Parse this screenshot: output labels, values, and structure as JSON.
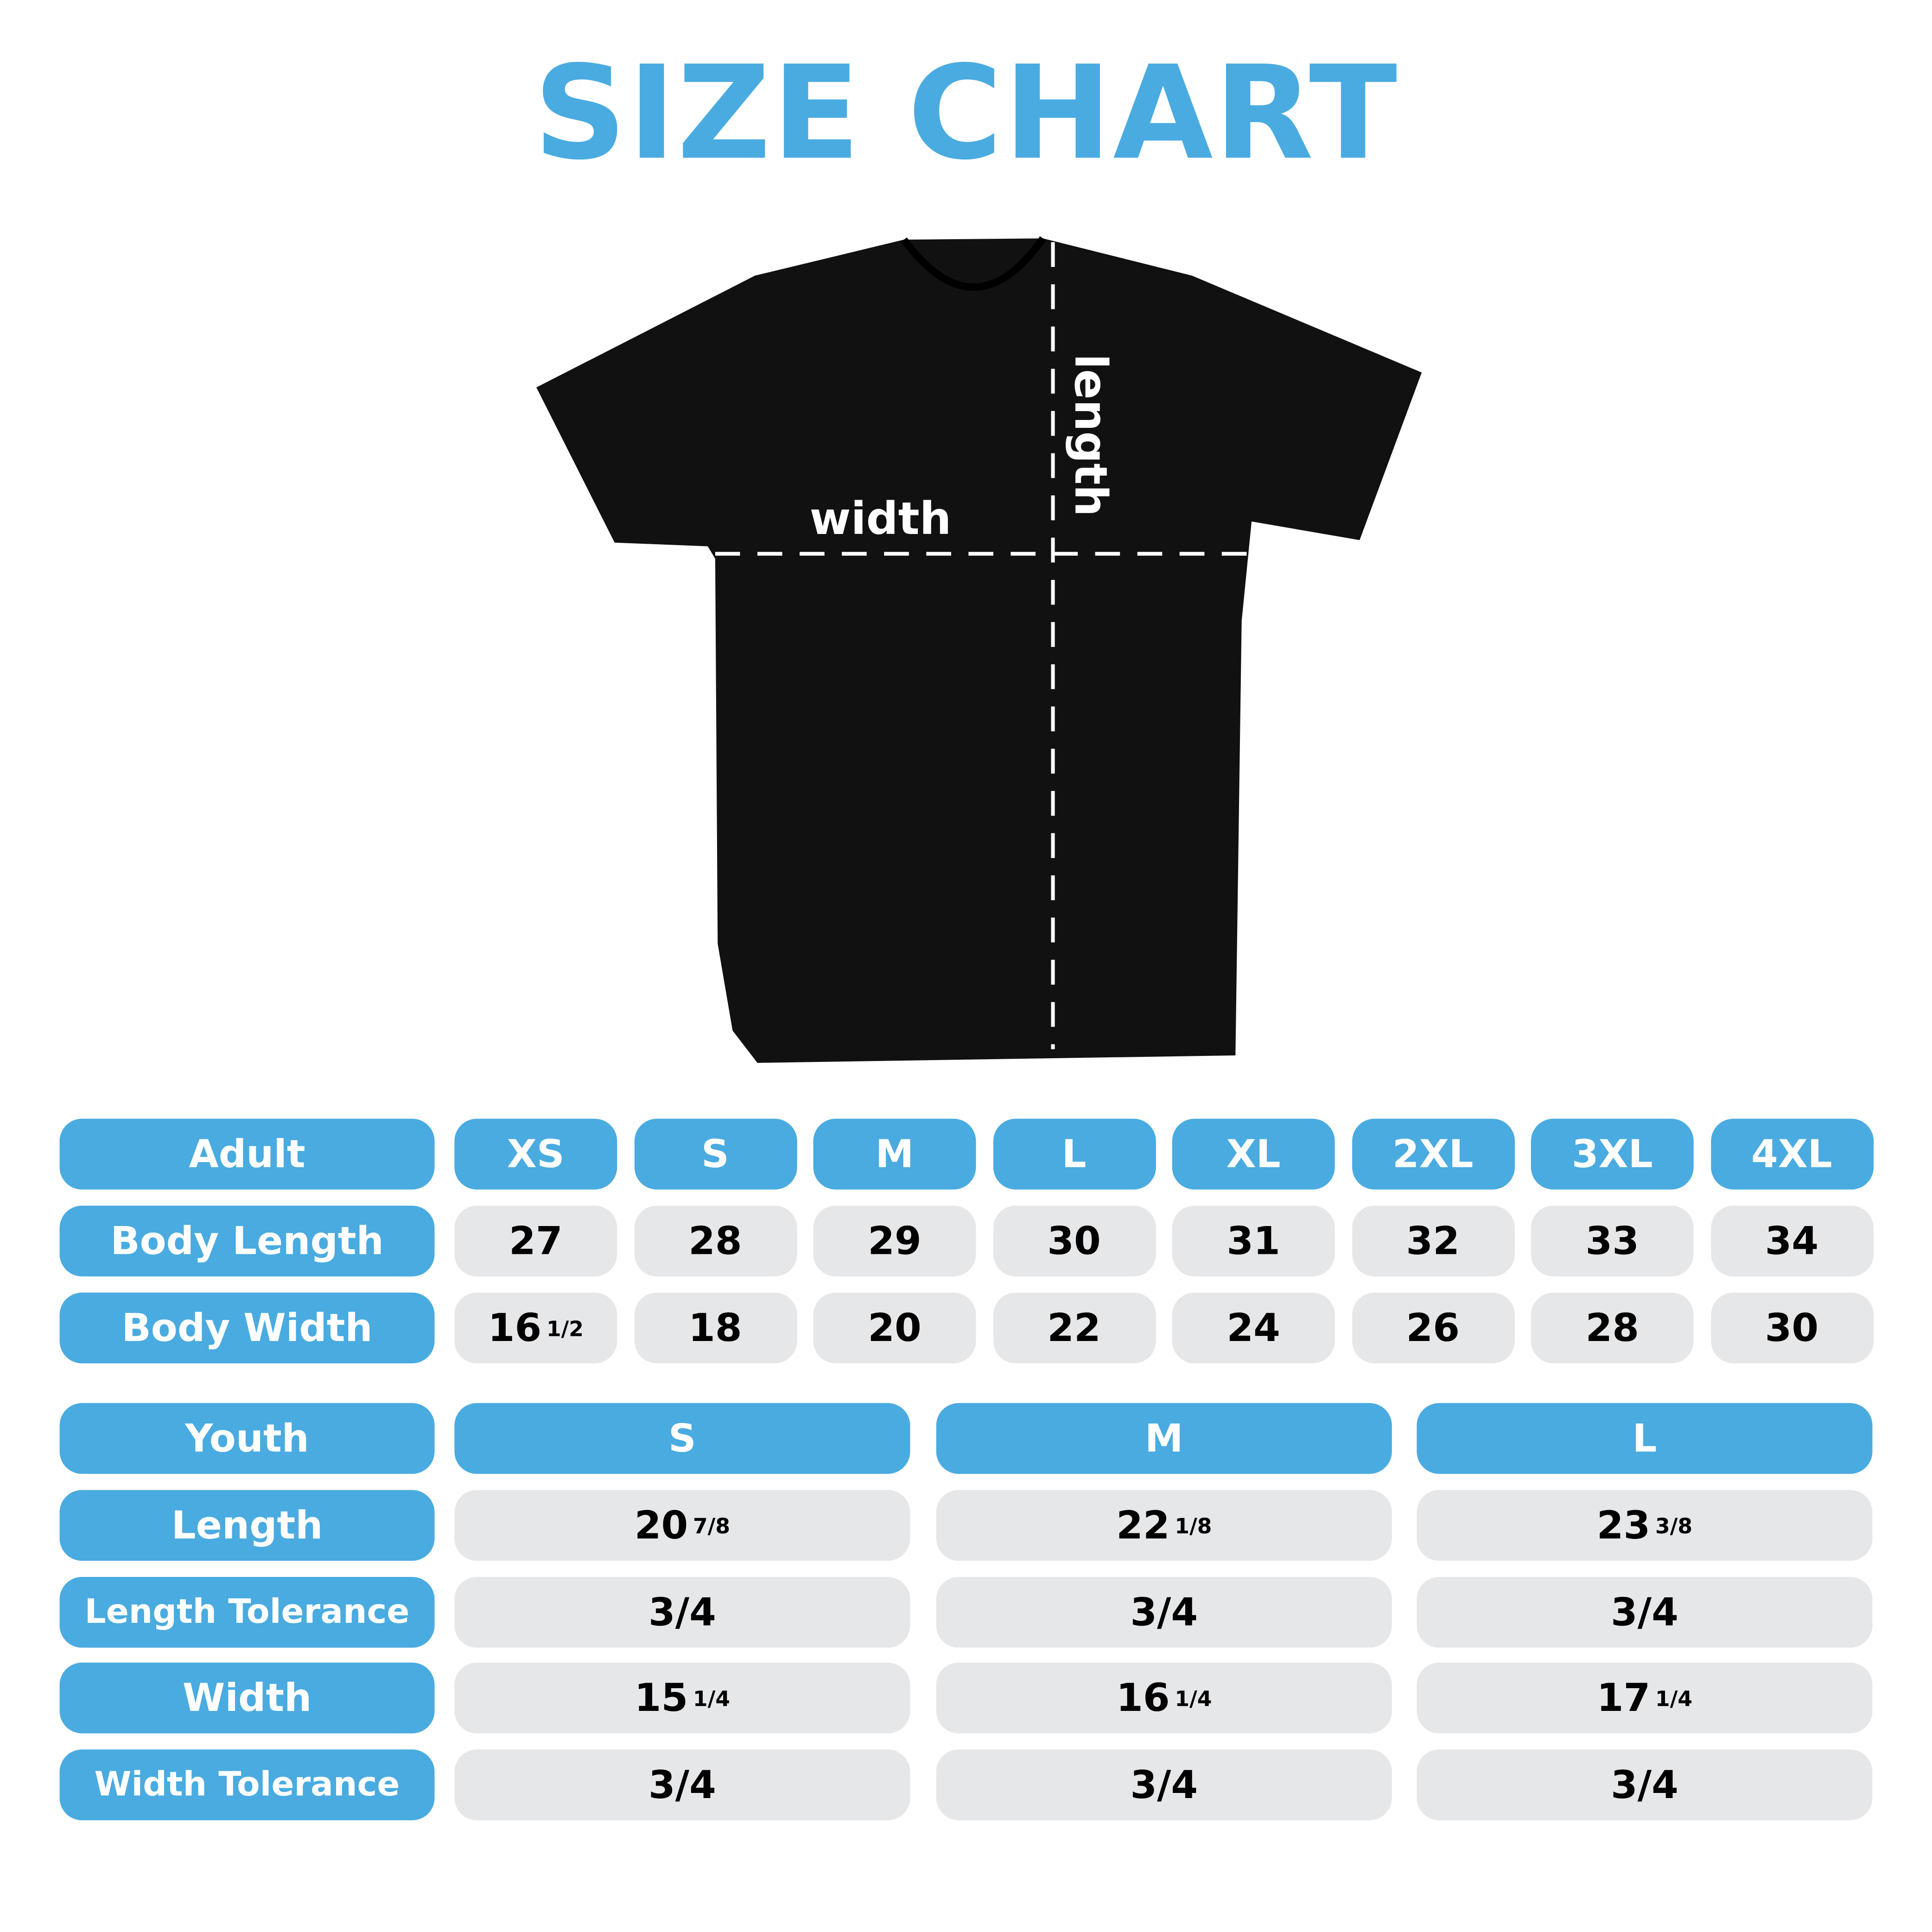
{
  "title": "SIZE CHART",
  "colors": {
    "accent": "#49ABE0",
    "cell": "#E6E7E9",
    "shirt": "#111111"
  },
  "shirt": {
    "width_label": "width",
    "length_label": "length"
  },
  "adult": {
    "header": "Adult",
    "sizes": [
      "XS",
      "S",
      "M",
      "L",
      "XL",
      "2XL",
      "3XL",
      "4XL"
    ],
    "rows": [
      {
        "label": "Body Length",
        "values": [
          {
            "w": "27",
            "f": ""
          },
          {
            "w": "28",
            "f": ""
          },
          {
            "w": "29",
            "f": ""
          },
          {
            "w": "30",
            "f": ""
          },
          {
            "w": "31",
            "f": ""
          },
          {
            "w": "32",
            "f": ""
          },
          {
            "w": "33",
            "f": ""
          },
          {
            "w": "34",
            "f": ""
          }
        ]
      },
      {
        "label": "Body Width",
        "values": [
          {
            "w": "16",
            "f": "1/2"
          },
          {
            "w": "18",
            "f": ""
          },
          {
            "w": "20",
            "f": ""
          },
          {
            "w": "22",
            "f": ""
          },
          {
            "w": "24",
            "f": ""
          },
          {
            "w": "26",
            "f": ""
          },
          {
            "w": "28",
            "f": ""
          },
          {
            "w": "30",
            "f": ""
          }
        ]
      }
    ]
  },
  "youth": {
    "header": "Youth",
    "sizes": [
      "S",
      "M",
      "L"
    ],
    "rows": [
      {
        "label": "Length",
        "values": [
          {
            "w": "20",
            "f": "7/8"
          },
          {
            "w": "22",
            "f": "1/8"
          },
          {
            "w": "23",
            "f": "3/8"
          }
        ]
      },
      {
        "label": "Length Tolerance",
        "values": [
          {
            "w": "3/4",
            "f": ""
          },
          {
            "w": "3/4",
            "f": ""
          },
          {
            "w": "3/4",
            "f": ""
          }
        ]
      },
      {
        "label": "Width",
        "values": [
          {
            "w": "15",
            "f": "1/4"
          },
          {
            "w": "16",
            "f": "1/4"
          },
          {
            "w": "17",
            "f": "1/4"
          }
        ]
      },
      {
        "label": "Width Tolerance",
        "values": [
          {
            "w": "3/4",
            "f": ""
          },
          {
            "w": "3/4",
            "f": ""
          },
          {
            "w": "3/4",
            "f": ""
          }
        ]
      }
    ]
  }
}
